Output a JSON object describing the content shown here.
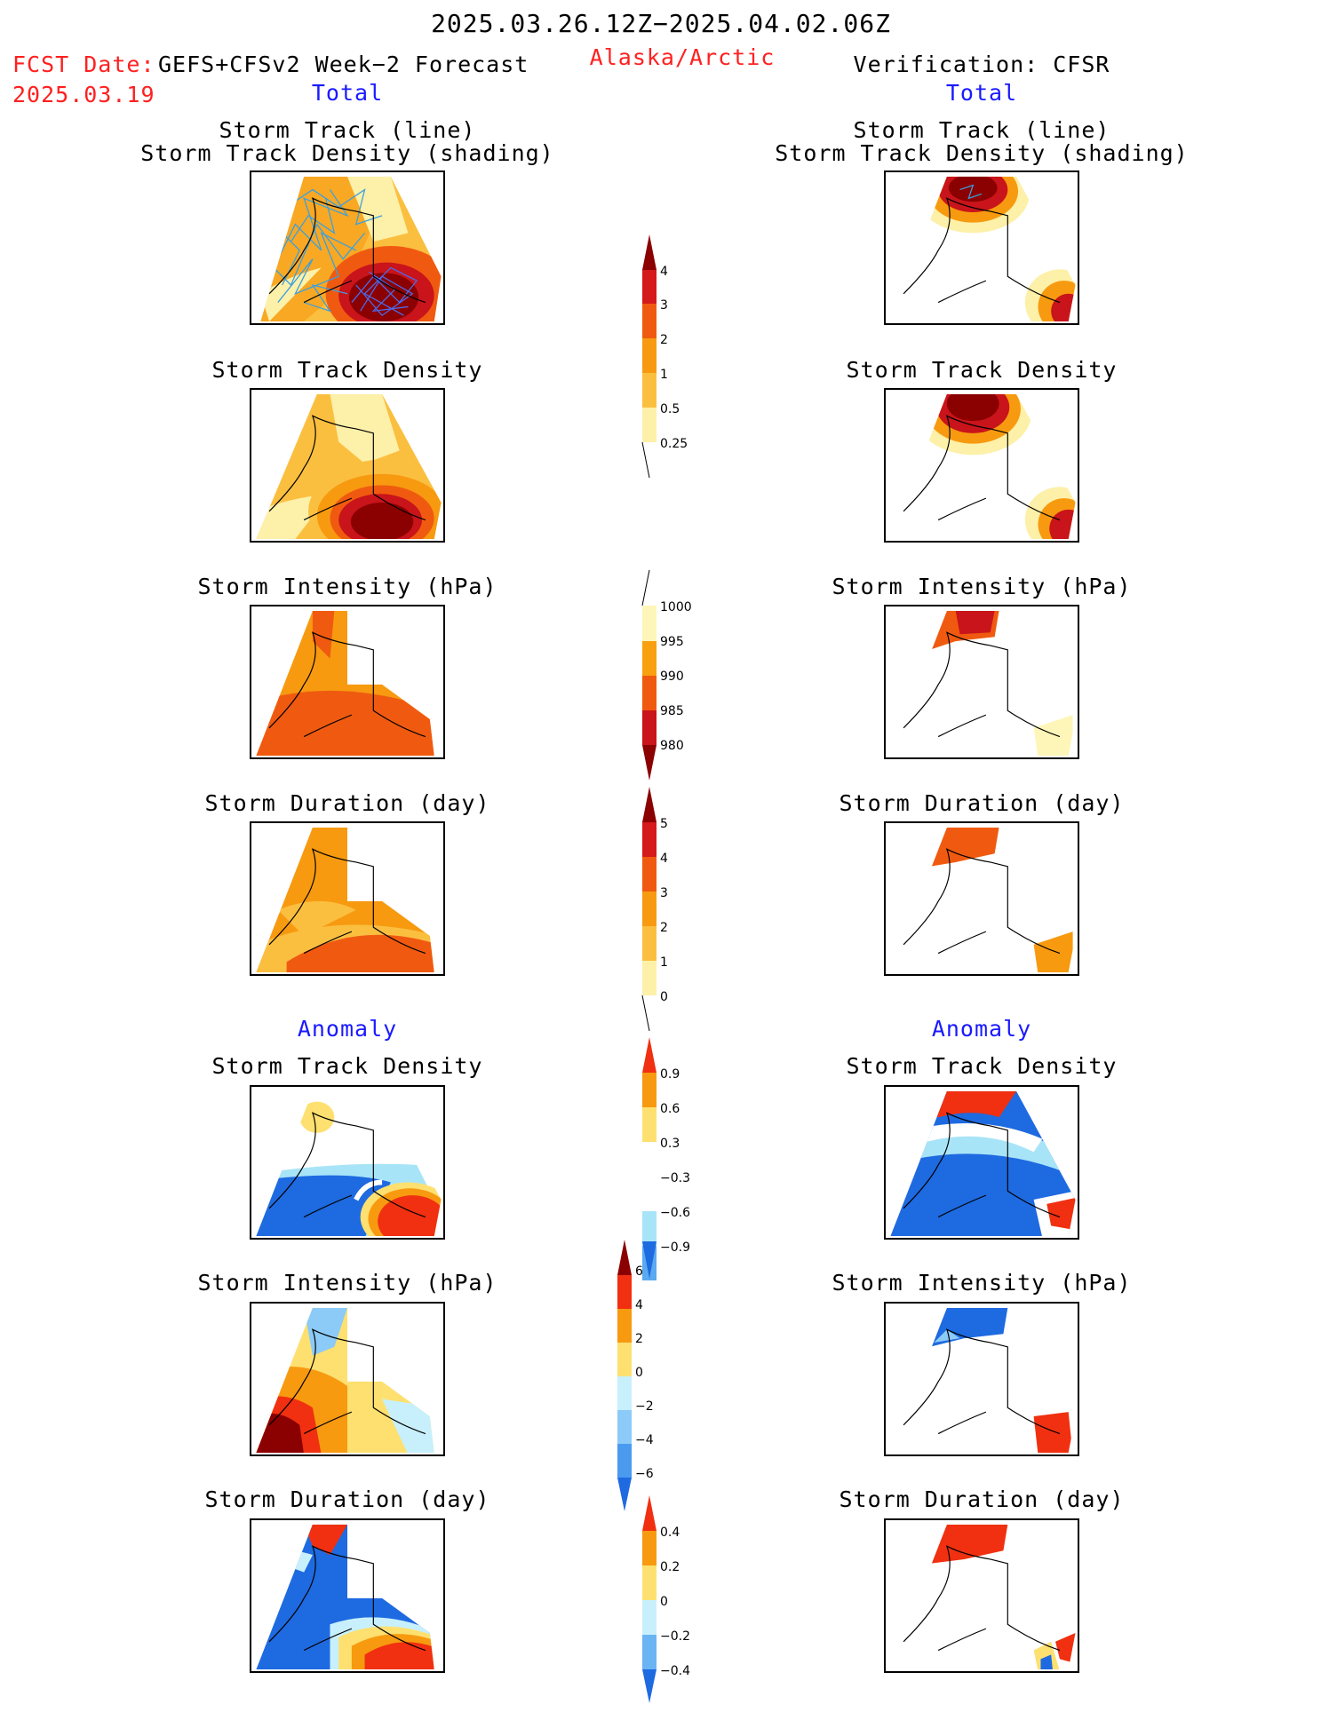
{
  "header": {
    "period": "2025.03.26.12Z−2025.04.02.06Z",
    "fcst_label": "FCST Date:",
    "fcst_model": "GEFS+CFSv2 Week−2 Forecast",
    "fcst_date": "2025.03.19",
    "region": "Alaska/Arctic",
    "verification": "Verification: CFSR"
  },
  "sections": {
    "total_left": "Total",
    "total_right": "Total",
    "anomaly_left": "Anomaly",
    "anomaly_right": "Anomaly"
  },
  "titles": {
    "track_line": "Storm Track (line)",
    "track_shading": "Storm Track Density (shading)",
    "density": "Storm Track Density",
    "intensity": "Storm Intensity (hPa)",
    "duration": "Storm Duration (day)"
  },
  "colorbars": {
    "density_total": {
      "labels": [
        "4",
        "3",
        "2",
        "1",
        "0.5",
        "0.25"
      ],
      "colors": [
        "#8b0000",
        "#d41a1a",
        "#f05a10",
        "#f79a10",
        "#fbbf40",
        "#fdf0a8"
      ]
    },
    "intensity_total": {
      "labels": [
        "1000",
        "995",
        "990",
        "985",
        "980"
      ],
      "colors": [
        "#fdf6b8",
        "#f9a010",
        "#f05a10",
        "#c8141a",
        "#8b0000"
      ]
    },
    "duration_total": {
      "labels": [
        "5",
        "4",
        "3",
        "2",
        "1",
        "0"
      ],
      "colors": [
        "#8b0000",
        "#d41a1a",
        "#f05a10",
        "#f79a10",
        "#fbbf40",
        "#fdf0a8"
      ]
    },
    "density_anom": {
      "labels": [
        "0.9",
        "0.6",
        "0.3",
        "−0.3",
        "−0.6",
        "−0.9"
      ],
      "colors": [
        "#f03010",
        "#f79a10",
        "#fde070",
        "#ffffff",
        "#a8e4f8",
        "#5aaaf0",
        "#1e6ae0"
      ]
    },
    "intensity_anom": {
      "labels": [
        "6",
        "4",
        "2",
        "0",
        "−2",
        "−4",
        "−6"
      ],
      "colors": [
        "#8b0000",
        "#f03010",
        "#f79a10",
        "#fde070",
        "#c8f0fc",
        "#8ccaf8",
        "#4a9af0",
        "#1e6ae0"
      ]
    },
    "duration_anom": {
      "labels": [
        "0.4",
        "0.2",
        "0",
        "−0.2",
        "−0.4"
      ],
      "colors": [
        "#f03010",
        "#f79a10",
        "#fde070",
        "#c8f0fc",
        "#6ab4f4",
        "#1e6ae0"
      ]
    }
  }
}
